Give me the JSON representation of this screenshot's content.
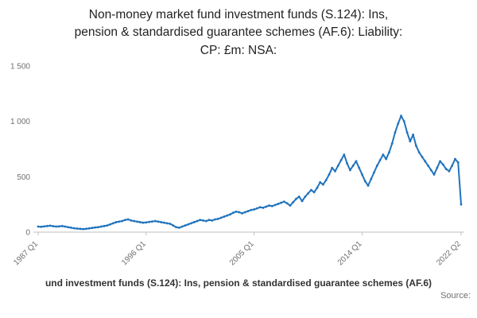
{
  "title_lines": [
    "Non-money market fund investment funds (S.124): Ins,",
    "pension & standardised guarantee schemes (AF.6): Liability:",
    "CP: £m: NSA:"
  ],
  "footer": {
    "legend": "und investment funds (S.124): Ins, pension & standardised guarantee schemes (AF.6)",
    "source_label": "Source:"
  },
  "chart_data": {
    "type": "line",
    "title": "Non-money market fund investment funds (S.124): Ins, pension & standardised guarantee schemes (AF.6): Liability: CP: £m: NSA:",
    "unit": "£m",
    "frequency": "quarterly",
    "x_start": "1987 Q1",
    "x_end": "2022 Q2",
    "ylim": [
      0,
      1500
    ],
    "grid": false,
    "legend_position": "none",
    "line_color": "#2073bc",
    "axis_color": "#bfbfbf",
    "tick_label_color": "#707071",
    "y_ticks": [
      {
        "value": 0,
        "label": "0"
      },
      {
        "value": 500,
        "label": "500"
      },
      {
        "value": 1000,
        "label": "1 000"
      },
      {
        "value": 1500,
        "label": "1 500"
      }
    ],
    "x_ticks": [
      {
        "index": 0,
        "label": "1987 Q1"
      },
      {
        "index": 36,
        "label": "1996 Q1"
      },
      {
        "index": 72,
        "label": "2005 Q1"
      },
      {
        "index": 108,
        "label": "2014 Q1"
      },
      {
        "index": 141,
        "label": "2022 Q2"
      }
    ],
    "values": [
      50,
      48,
      52,
      55,
      58,
      54,
      50,
      52,
      55,
      50,
      45,
      40,
      35,
      32,
      30,
      28,
      30,
      34,
      38,
      42,
      45,
      50,
      55,
      60,
      70,
      80,
      90,
      95,
      100,
      110,
      115,
      105,
      100,
      95,
      90,
      85,
      88,
      92,
      96,
      100,
      95,
      90,
      85,
      80,
      75,
      60,
      45,
      40,
      50,
      60,
      70,
      80,
      90,
      100,
      110,
      105,
      100,
      110,
      105,
      115,
      120,
      130,
      140,
      150,
      160,
      175,
      185,
      180,
      170,
      180,
      190,
      200,
      205,
      215,
      225,
      220,
      230,
      240,
      235,
      245,
      255,
      265,
      275,
      260,
      240,
      270,
      300,
      320,
      280,
      320,
      350,
      380,
      360,
      400,
      450,
      430,
      470,
      520,
      580,
      550,
      600,
      650,
      700,
      620,
      560,
      600,
      640,
      580,
      520,
      460,
      420,
      480,
      540,
      600,
      650,
      700,
      660,
      720,
      800,
      900,
      980,
      1050,
      1000,
      900,
      820,
      880,
      780,
      720,
      680,
      640,
      600,
      560,
      520,
      580,
      640,
      610,
      570,
      550,
      600,
      660,
      630,
      250
    ]
  }
}
